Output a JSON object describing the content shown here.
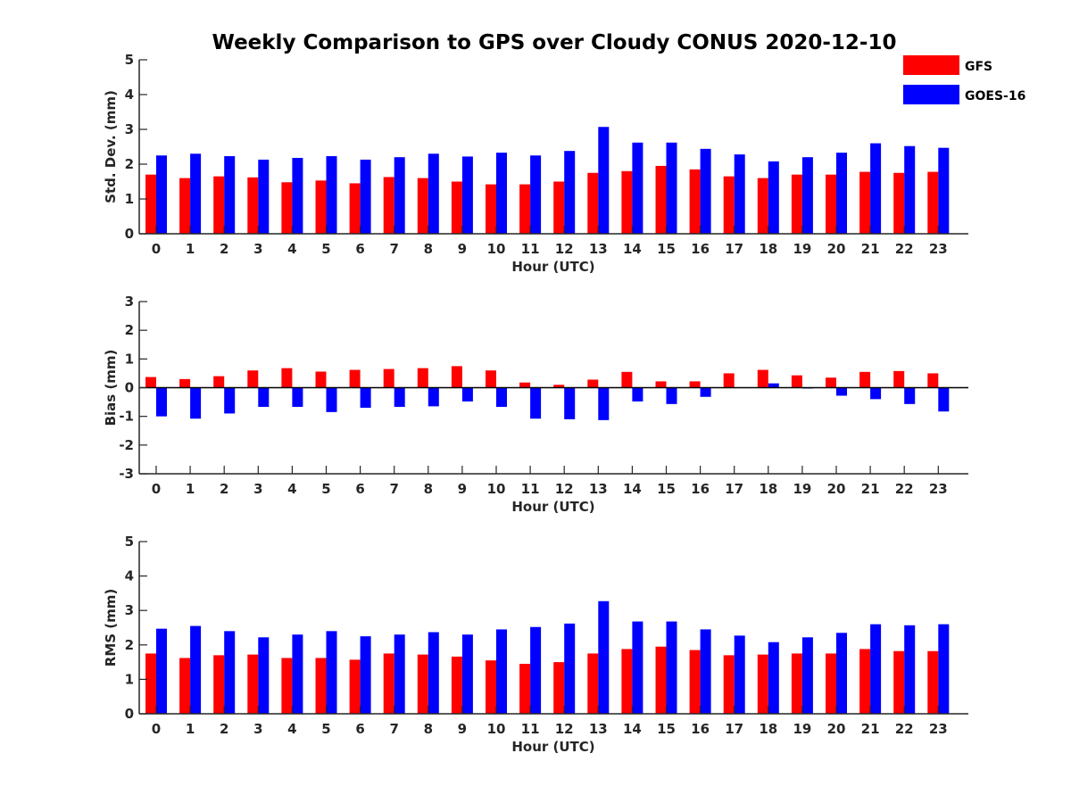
{
  "title": "Weekly Comparison to GPS over Cloudy CONUS 2020-12-10",
  "legend": {
    "placement": "top-right",
    "entries": [
      {
        "name": "GFS",
        "color": "#ff0000"
      },
      {
        "name": "GOES-16",
        "color": "#0000ff"
      }
    ]
  },
  "chart_data": [
    {
      "type": "bar",
      "xlabel": "Hour (UTC)",
      "ylabel": "Std. Dev. (mm)",
      "ylim": [
        0,
        5
      ],
      "yticks": [
        0,
        1,
        2,
        3,
        4,
        5
      ],
      "categories": [
        0,
        1,
        2,
        3,
        4,
        5,
        6,
        7,
        8,
        9,
        10,
        11,
        12,
        13,
        14,
        15,
        16,
        17,
        18,
        19,
        20,
        21,
        22,
        23
      ],
      "series": [
        {
          "name": "GFS",
          "color": "#ff0000",
          "values": [
            1.7,
            1.6,
            1.65,
            1.62,
            1.48,
            1.53,
            1.45,
            1.63,
            1.6,
            1.5,
            1.42,
            1.42,
            1.5,
            1.75,
            1.8,
            1.95,
            1.85,
            1.65,
            1.6,
            1.7,
            1.7,
            1.78,
            1.75,
            1.78
          ]
        },
        {
          "name": "GOES-16",
          "color": "#0000ff",
          "values": [
            2.25,
            2.3,
            2.23,
            2.13,
            2.18,
            2.23,
            2.13,
            2.2,
            2.3,
            2.22,
            2.33,
            2.25,
            2.38,
            3.07,
            2.62,
            2.62,
            2.44,
            2.28,
            2.08,
            2.2,
            2.33,
            2.6,
            2.52,
            2.47
          ]
        }
      ]
    },
    {
      "type": "bar",
      "xlabel": "Hour (UTC)",
      "ylabel": "Bias (mm)",
      "ylim": [
        -3,
        3
      ],
      "yticks": [
        -3,
        -2,
        -1,
        0,
        1,
        2,
        3
      ],
      "categories": [
        0,
        1,
        2,
        3,
        4,
        5,
        6,
        7,
        8,
        9,
        10,
        11,
        12,
        13,
        14,
        15,
        16,
        17,
        18,
        19,
        20,
        21,
        22,
        23
      ],
      "series": [
        {
          "name": "GFS",
          "color": "#ff0000",
          "values": [
            0.37,
            0.3,
            0.4,
            0.6,
            0.68,
            0.56,
            0.62,
            0.65,
            0.68,
            0.75,
            0.6,
            0.18,
            0.1,
            0.28,
            0.55,
            0.22,
            0.22,
            0.5,
            0.62,
            0.43,
            0.35,
            0.55,
            0.58,
            0.5
          ]
        },
        {
          "name": "GOES-16",
          "color": "#0000ff",
          "values": [
            -1.0,
            -1.08,
            -0.9,
            -0.67,
            -0.67,
            -0.85,
            -0.7,
            -0.67,
            -0.65,
            -0.48,
            -0.67,
            -1.08,
            -1.1,
            -1.13,
            -0.48,
            -0.57,
            -0.32,
            0.0,
            0.15,
            -0.03,
            -0.28,
            -0.4,
            -0.57,
            -0.83
          ]
        }
      ]
    },
    {
      "type": "bar",
      "xlabel": "Hour (UTC)",
      "ylabel": "RMS (mm)",
      "ylim": [
        0,
        5
      ],
      "yticks": [
        0,
        1,
        2,
        3,
        4,
        5
      ],
      "categories": [
        0,
        1,
        2,
        3,
        4,
        5,
        6,
        7,
        8,
        9,
        10,
        11,
        12,
        13,
        14,
        15,
        16,
        17,
        18,
        19,
        20,
        21,
        22,
        23
      ],
      "series": [
        {
          "name": "GFS",
          "color": "#ff0000",
          "values": [
            1.75,
            1.62,
            1.7,
            1.72,
            1.62,
            1.62,
            1.57,
            1.75,
            1.72,
            1.66,
            1.55,
            1.45,
            1.5,
            1.75,
            1.88,
            1.95,
            1.85,
            1.7,
            1.72,
            1.75,
            1.75,
            1.88,
            1.82,
            1.82
          ]
        },
        {
          "name": "GOES-16",
          "color": "#0000ff",
          "values": [
            2.47,
            2.55,
            2.4,
            2.22,
            2.3,
            2.4,
            2.25,
            2.3,
            2.37,
            2.3,
            2.45,
            2.52,
            2.62,
            3.27,
            2.68,
            2.68,
            2.45,
            2.27,
            2.08,
            2.22,
            2.35,
            2.6,
            2.57,
            2.6
          ]
        }
      ]
    }
  ]
}
